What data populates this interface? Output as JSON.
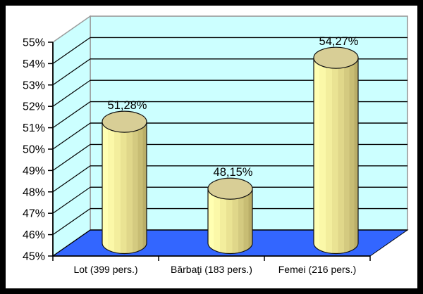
{
  "chart": {
    "colors": {
      "wall": "#CCFFFF",
      "wall_edge": "#999999",
      "floor": "#3366FF",
      "floor_edge": "#000000",
      "cylinder_top": "#D8CE96",
      "cylinder_light": "#FFFFB2",
      "cylinder_dark": "#BAAE68",
      "gridline": "#000000",
      "frame": "#000000",
      "background": "#FFFFFF"
    }
  },
  "chart_data": {
    "type": "bar",
    "subtype": "3d-cylinder",
    "title": "",
    "xlabel": "",
    "ylabel": "",
    "categories": [
      "Lot (399 pers.)",
      "Bărbaţi (183 pers.)",
      "Femei (216 pers.)"
    ],
    "values": [
      51.28,
      48.15,
      54.27
    ],
    "data_labels": [
      "51,28%",
      "48,15%",
      "54,27%"
    ],
    "ylim": [
      45,
      55
    ],
    "y_tick_step": 1,
    "y_tick_labels": [
      "45%",
      "46%",
      "47%",
      "48%",
      "49%",
      "50%",
      "51%",
      "52%",
      "53%",
      "54%",
      "55%"
    ],
    "grid": true,
    "legend": "none"
  }
}
